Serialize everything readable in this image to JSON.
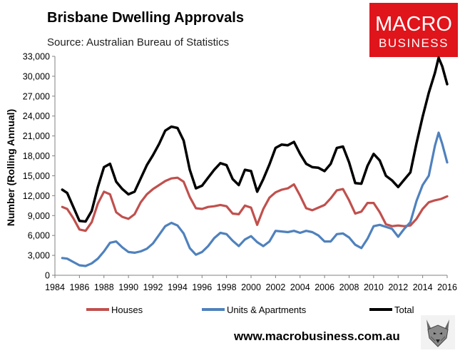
{
  "header": {
    "title": "Brisbane Dwelling Approvals",
    "source": "Source: Australian Bureau of Statistics"
  },
  "logo": {
    "line1": "MACRO",
    "line2": "BUSINESS",
    "bg_color": "#e0141b"
  },
  "footer": {
    "website": "www.macrobusiness.com.au",
    "mascot": "wolf-icon"
  },
  "chart_data": {
    "type": "line",
    "title": "Brisbane Dwelling Approvals",
    "subtitle": "Source: Australian Bureau of Statistics",
    "xlabel": "",
    "ylabel": "Number (Rolling Annual)",
    "xlim": [
      1984,
      2016
    ],
    "ylim": [
      0,
      33000
    ],
    "x_ticks": [
      "1984",
      "1986",
      "1988",
      "1990",
      "1992",
      "1994",
      "1996",
      "1998",
      "2000",
      "2002",
      "2004",
      "2006",
      "2008",
      "2010",
      "2012",
      "2014",
      "2016"
    ],
    "y_ticks": [
      "0",
      "3,000",
      "6,000",
      "9,000",
      "12,000",
      "15,000",
      "18,000",
      "21,000",
      "24,000",
      "27,000",
      "30,000",
      "33,000"
    ],
    "y_tick_values": [
      0,
      3000,
      6000,
      9000,
      12000,
      15000,
      18000,
      21000,
      24000,
      27000,
      30000,
      33000
    ],
    "legend_position": "bottom",
    "series": [
      {
        "name": "Houses",
        "color": "#c0504d",
        "x": [
          1984.6,
          1985.0,
          1985.5,
          1986.0,
          1986.5,
          1987.0,
          1987.5,
          1988.0,
          1988.5,
          1989.0,
          1989.5,
          1990.0,
          1990.5,
          1991.0,
          1991.5,
          1992.0,
          1992.5,
          1993.0,
          1993.5,
          1994.0,
          1994.5,
          1995.0,
          1995.5,
          1996.0,
          1996.5,
          1997.0,
          1997.5,
          1998.0,
          1998.5,
          1999.0,
          1999.5,
          2000.0,
          2000.5,
          2001.0,
          2001.5,
          2002.0,
          2002.5,
          2003.0,
          2003.5,
          2004.0,
          2004.5,
          2005.0,
          2005.5,
          2006.0,
          2006.5,
          2007.0,
          2007.5,
          2008.0,
          2008.5,
          2009.0,
          2009.5,
          2010.0,
          2010.5,
          2011.0,
          2011.5,
          2012.0,
          2012.5,
          2013.0,
          2013.5,
          2014.0,
          2014.5,
          2015.0,
          2015.5,
          2016.0
        ],
        "values": [
          10300,
          10000,
          8600,
          6900,
          6700,
          8000,
          10800,
          12600,
          12200,
          9500,
          8800,
          8500,
          9200,
          11000,
          12200,
          13000,
          13600,
          14200,
          14600,
          14700,
          14100,
          11800,
          10100,
          10000,
          10300,
          10400,
          10600,
          10400,
          9300,
          9200,
          10500,
          10200,
          7600,
          10000,
          11700,
          12500,
          12900,
          13100,
          13700,
          12000,
          10100,
          9800,
          10200,
          10600,
          11600,
          12800,
          13000,
          11300,
          9300,
          9600,
          10900,
          10900,
          9500,
          7700,
          7400,
          7500,
          7400,
          7500,
          8500,
          10000,
          11000,
          11300,
          11500,
          11900
        ]
      },
      {
        "name": "Units & Apartments",
        "color": "#4f81bd",
        "x": [
          1984.6,
          1985.0,
          1985.5,
          1986.0,
          1986.5,
          1987.0,
          1987.5,
          1988.0,
          1988.5,
          1989.0,
          1989.5,
          1990.0,
          1990.5,
          1991.0,
          1991.5,
          1992.0,
          1992.5,
          1993.0,
          1993.5,
          1994.0,
          1994.5,
          1995.0,
          1995.5,
          1996.0,
          1996.5,
          1997.0,
          1997.5,
          1998.0,
          1998.5,
          1999.0,
          1999.5,
          2000.0,
          2000.5,
          2001.0,
          2001.5,
          2002.0,
          2002.5,
          2003.0,
          2003.5,
          2004.0,
          2004.5,
          2005.0,
          2005.5,
          2006.0,
          2006.5,
          2007.0,
          2007.5,
          2008.0,
          2008.5,
          2009.0,
          2009.5,
          2010.0,
          2010.5,
          2011.0,
          2011.5,
          2012.0,
          2012.5,
          2013.0,
          2013.5,
          2014.0,
          2014.5,
          2015.0,
          2015.3,
          2015.6,
          2016.0
        ],
        "values": [
          2600,
          2500,
          2000,
          1500,
          1400,
          1800,
          2500,
          3600,
          4900,
          5100,
          4200,
          3500,
          3400,
          3600,
          4000,
          4800,
          6100,
          7400,
          7900,
          7500,
          6300,
          4100,
          3100,
          3500,
          4400,
          5600,
          6400,
          6200,
          5200,
          4400,
          5400,
          5900,
          5000,
          4400,
          5100,
          6700,
          6600,
          6500,
          6700,
          6400,
          6700,
          6500,
          6000,
          5100,
          5100,
          6200,
          6300,
          5700,
          4600,
          4100,
          5500,
          7400,
          7600,
          7300,
          7000,
          5800,
          7000,
          8000,
          11200,
          13600,
          15000,
          19500,
          21500,
          19800,
          17000
        ]
      },
      {
        "name": "Total",
        "color": "#000000",
        "x": [
          1984.6,
          1985.0,
          1985.5,
          1986.0,
          1986.5,
          1987.0,
          1987.5,
          1988.0,
          1988.5,
          1989.0,
          1989.5,
          1990.0,
          1990.5,
          1991.0,
          1991.5,
          1992.0,
          1992.5,
          1993.0,
          1993.5,
          1994.0,
          1994.5,
          1995.0,
          1995.5,
          1996.0,
          1996.5,
          1997.0,
          1997.5,
          1998.0,
          1998.5,
          1999.0,
          1999.5,
          2000.0,
          2000.5,
          2001.0,
          2001.5,
          2002.0,
          2002.5,
          2003.0,
          2003.5,
          2004.0,
          2004.5,
          2005.0,
          2005.5,
          2006.0,
          2006.5,
          2007.0,
          2007.5,
          2008.0,
          2008.5,
          2009.0,
          2009.5,
          2010.0,
          2010.5,
          2011.0,
          2011.5,
          2012.0,
          2012.5,
          2013.0,
          2013.5,
          2014.0,
          2014.5,
          2015.0,
          2015.3,
          2015.6,
          2016.0
        ],
        "values": [
          12900,
          12400,
          10300,
          8200,
          8100,
          9700,
          13300,
          16300,
          16800,
          14100,
          13000,
          12200,
          12600,
          14600,
          16600,
          18100,
          19800,
          21800,
          22400,
          22200,
          20300,
          15900,
          13100,
          13500,
          14700,
          15900,
          16900,
          16600,
          14500,
          13600,
          15900,
          15700,
          12600,
          14500,
          16700,
          19200,
          19700,
          19600,
          20100,
          18300,
          16800,
          16300,
          16200,
          15700,
          16800,
          19200,
          19400,
          17000,
          13900,
          13800,
          16500,
          18300,
          17300,
          15000,
          14300,
          13300,
          14400,
          15500,
          19900,
          23900,
          27500,
          30500,
          32800,
          31500,
          28800
        ]
      }
    ]
  }
}
